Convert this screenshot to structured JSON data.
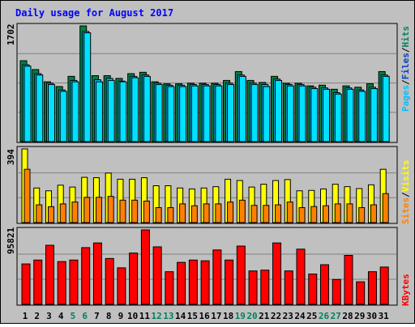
{
  "title": "Daily usage for August 2017",
  "colors": {
    "background": "#c0c0c0",
    "plot": "#c0c0c0",
    "hits": "#008040",
    "files": "#00c0ff",
    "pages": "#00e0ff",
    "visits": "#ffff00",
    "sites": "#ff8000",
    "kbytes": "#ff0000",
    "title": "#0000ff",
    "weekend_label": "#00805c",
    "weekday_label": "#000000"
  },
  "labels": {
    "pages": "Pages",
    "files": "Files",
    "hits": "Hits",
    "sites": "Sites",
    "visits": "Visits",
    "kbytes": "KBytes",
    "sep": "/"
  },
  "chart_data": [
    {
      "type": "bar",
      "panel": "hits_files_pages",
      "x": [
        1,
        2,
        3,
        4,
        5,
        6,
        7,
        8,
        9,
        10,
        11,
        12,
        13,
        14,
        15,
        16,
        17,
        18,
        19,
        20,
        21,
        22,
        23,
        24,
        25,
        26,
        27,
        28,
        29,
        30,
        31
      ],
      "ymax_label": "1702",
      "ylim": [
        0,
        1702
      ],
      "series": [
        {
          "name": "Hits",
          "values": [
            1190,
            1060,
            880,
            810,
            960,
            1702,
            970,
            970,
            930,
            1000,
            1020,
            880,
            850,
            850,
            860,
            860,
            860,
            900,
            1030,
            900,
            870,
            960,
            860,
            860,
            820,
            830,
            770,
            820,
            800,
            850,
            1030
          ]
        },
        {
          "name": "Files",
          "values": [
            1130,
            1000,
            860,
            760,
            900,
            1620,
            910,
            930,
            890,
            960,
            980,
            860,
            830,
            830,
            840,
            840,
            840,
            860,
            980,
            860,
            840,
            920,
            840,
            840,
            800,
            790,
            720,
            790,
            760,
            800,
            980
          ]
        },
        {
          "name": "Pages",
          "values": [
            1110,
            980,
            840,
            740,
            880,
            1600,
            880,
            900,
            880,
            940,
            960,
            840,
            810,
            810,
            820,
            820,
            820,
            840,
            960,
            840,
            810,
            900,
            820,
            820,
            780,
            770,
            700,
            770,
            740,
            780,
            960
          ]
        }
      ]
    },
    {
      "type": "bar",
      "panel": "visits_sites",
      "x": [
        1,
        2,
        3,
        4,
        5,
        6,
        7,
        8,
        9,
        10,
        11,
        12,
        13,
        14,
        15,
        16,
        17,
        18,
        19,
        20,
        21,
        22,
        23,
        24,
        25,
        26,
        27,
        28,
        29,
        30,
        31
      ],
      "ymax_label": "394",
      "ylim": [
        0,
        394
      ],
      "series": [
        {
          "name": "Visits",
          "values": [
            394,
            185,
            170,
            200,
            190,
            242,
            240,
            265,
            232,
            232,
            240,
            197,
            197,
            185,
            180,
            185,
            192,
            232,
            225,
            190,
            205,
            225,
            230,
            170,
            172,
            180,
            205,
            192,
            182,
            202,
            285
          ]
        },
        {
          "name": "Sites",
          "values": [
            285,
            95,
            85,
            100,
            110,
            135,
            135,
            140,
            120,
            120,
            115,
            80,
            80,
            100,
            90,
            100,
            100,
            110,
            120,
            92,
            92,
            95,
            110,
            80,
            86,
            90,
            100,
            100,
            80,
            95,
            155
          ]
        }
      ]
    },
    {
      "type": "bar",
      "panel": "kbytes",
      "x": [
        1,
        2,
        3,
        4,
        5,
        6,
        7,
        8,
        9,
        10,
        11,
        12,
        13,
        14,
        15,
        16,
        17,
        18,
        19,
        20,
        21,
        22,
        23,
        24,
        25,
        26,
        27,
        28,
        29,
        30,
        31
      ],
      "ymax_label": "95821",
      "ylim": [
        0,
        95821
      ],
      "series": [
        {
          "name": "KBytes",
          "values": [
            52000,
            57000,
            76000,
            55000,
            57000,
            73000,
            79000,
            59000,
            47000,
            66000,
            95821,
            74000,
            42000,
            54000,
            57000,
            56000,
            70000,
            57000,
            75000,
            43000,
            44000,
            79000,
            43000,
            71000,
            39000,
            51000,
            32000,
            63000,
            29000,
            42000,
            48000
          ]
        }
      ]
    }
  ],
  "x_labels": [
    "1",
    "2",
    "3",
    "4",
    "5",
    "6",
    "7",
    "8",
    "9",
    "10",
    "11",
    "12",
    "13",
    "14",
    "15",
    "16",
    "17",
    "18",
    "19",
    "20",
    "21",
    "22",
    "23",
    "24",
    "25",
    "26",
    "27",
    "28",
    "29",
    "30",
    "31"
  ],
  "weekend_days": [
    5,
    6,
    12,
    13,
    19,
    20,
    26,
    27
  ]
}
